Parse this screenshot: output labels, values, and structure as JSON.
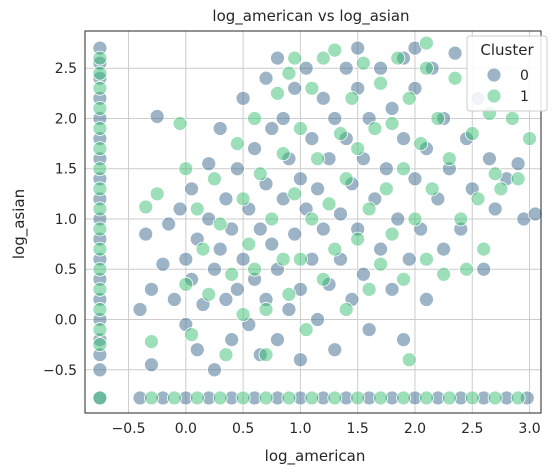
{
  "chart_data": {
    "type": "scatter",
    "title": "log_american vs log_asian",
    "xlabel": "log_american",
    "ylabel": "log_asian",
    "xlim": [
      -0.88,
      3.1
    ],
    "ylim": [
      -0.93,
      2.87
    ],
    "xticks": [
      "−0.5",
      "0.0",
      "0.5",
      "1.0",
      "1.5",
      "2.0",
      "2.5",
      "3.0"
    ],
    "xtick_values": [
      -0.5,
      0.0,
      0.5,
      1.0,
      1.5,
      2.0,
      2.5,
      3.0
    ],
    "yticks": [
      "−0.5",
      "0.0",
      "0.5",
      "1.0",
      "1.5",
      "2.0",
      "2.5"
    ],
    "ytick_values": [
      -0.5,
      0.0,
      0.5,
      1.0,
      1.5,
      2.0,
      2.5
    ],
    "grid": true,
    "legend": {
      "title": "Cluster",
      "placement": "top-right",
      "entries": [
        {
          "label": "0",
          "color": "#3b6a8f"
        },
        {
          "label": "1",
          "color": "#3cbf74"
        }
      ]
    },
    "point_alpha": 0.5,
    "series": [
      {
        "name": "0",
        "color": "#3b6a8f",
        "points": [
          [
            -0.75,
            2.7
          ],
          [
            -0.75,
            2.55
          ],
          [
            -0.75,
            2.4
          ],
          [
            -0.75,
            2.2
          ],
          [
            -0.75,
            2.0
          ],
          [
            -0.75,
            1.8
          ],
          [
            -0.75,
            1.6
          ],
          [
            -0.75,
            1.4
          ],
          [
            -0.75,
            1.2
          ],
          [
            -0.75,
            1.0
          ],
          [
            -0.75,
            0.8
          ],
          [
            -0.75,
            0.6
          ],
          [
            -0.75,
            0.4
          ],
          [
            -0.75,
            0.2
          ],
          [
            -0.75,
            0.0
          ],
          [
            -0.75,
            -0.2
          ],
          [
            -0.75,
            -0.35
          ],
          [
            -0.75,
            -0.5
          ],
          [
            -0.75,
            -0.78
          ],
          [
            -0.4,
            -0.78
          ],
          [
            -0.2,
            -0.78
          ],
          [
            0.0,
            -0.78
          ],
          [
            0.2,
            -0.78
          ],
          [
            0.4,
            -0.78
          ],
          [
            0.6,
            -0.78
          ],
          [
            0.8,
            -0.78
          ],
          [
            1.0,
            -0.78
          ],
          [
            1.2,
            -0.78
          ],
          [
            1.4,
            -0.78
          ],
          [
            1.6,
            -0.78
          ],
          [
            1.8,
            -0.78
          ],
          [
            2.0,
            -0.78
          ],
          [
            2.2,
            -0.78
          ],
          [
            2.4,
            -0.78
          ],
          [
            2.6,
            -0.78
          ],
          [
            2.8,
            -0.78
          ],
          [
            2.98,
            -0.78
          ],
          [
            -0.4,
            0.1
          ],
          [
            -0.35,
            0.85
          ],
          [
            -0.3,
            -0.45
          ],
          [
            -0.3,
            0.3
          ],
          [
            -0.25,
            2.02
          ],
          [
            -0.2,
            0.55
          ],
          [
            -0.15,
            0.95
          ],
          [
            -0.1,
            0.2
          ],
          [
            -0.05,
            1.1
          ],
          [
            0.0,
            -0.05
          ],
          [
            0.0,
            0.6
          ],
          [
            0.05,
            1.3
          ],
          [
            0.05,
            0.4
          ],
          [
            0.1,
            0.8
          ],
          [
            0.1,
            -0.3
          ],
          [
            0.15,
            0.15
          ],
          [
            0.2,
            1.55
          ],
          [
            0.2,
            1.0
          ],
          [
            0.25,
            0.5
          ],
          [
            0.25,
            -0.5
          ],
          [
            0.3,
            1.9
          ],
          [
            0.3,
            0.7
          ],
          [
            0.35,
            0.2
          ],
          [
            0.35,
            1.2
          ],
          [
            0.4,
            0.9
          ],
          [
            0.4,
            -0.2
          ],
          [
            0.45,
            1.5
          ],
          [
            0.45,
            0.3
          ],
          [
            0.5,
            2.2
          ],
          [
            0.5,
            0.6
          ],
          [
            0.55,
            1.1
          ],
          [
            0.55,
            -0.05
          ],
          [
            0.6,
            1.7
          ],
          [
            0.6,
            0.4
          ],
          [
            0.65,
            0.9
          ],
          [
            0.65,
            -0.35
          ],
          [
            0.7,
            2.4
          ],
          [
            0.7,
            1.35
          ],
          [
            0.7,
            0.2
          ],
          [
            0.75,
            0.75
          ],
          [
            0.75,
            1.9
          ],
          [
            0.8,
            2.6
          ],
          [
            0.8,
            0.5
          ],
          [
            0.8,
            -0.2
          ],
          [
            0.85,
            1.2
          ],
          [
            0.85,
            2.0
          ],
          [
            0.9,
            1.6
          ],
          [
            0.9,
            0.1
          ],
          [
            0.95,
            0.85
          ],
          [
            0.95,
            2.3
          ],
          [
            1.0,
            1.4
          ],
          [
            1.0,
            0.3
          ],
          [
            1.0,
            -0.4
          ],
          [
            1.05,
            1.1
          ],
          [
            1.05,
            2.5
          ],
          [
            1.1,
            0.6
          ],
          [
            1.1,
            1.8
          ],
          [
            1.15,
            0.0
          ],
          [
            1.15,
            1.3
          ],
          [
            1.2,
            2.2
          ],
          [
            1.2,
            0.9
          ],
          [
            1.25,
            1.6
          ],
          [
            1.25,
            0.35
          ],
          [
            1.3,
            2.0
          ],
          [
            1.3,
            -0.3
          ],
          [
            1.35,
            1.05
          ],
          [
            1.35,
            0.6
          ],
          [
            1.4,
            1.8
          ],
          [
            1.4,
            2.5
          ],
          [
            1.45,
            0.2
          ],
          [
            1.45,
            1.35
          ],
          [
            1.5,
            0.9
          ],
          [
            1.5,
            2.3
          ],
          [
            1.55,
            1.6
          ],
          [
            1.55,
            0.45
          ],
          [
            1.6,
            2.0
          ],
          [
            1.6,
            -0.1
          ],
          [
            1.65,
            1.2
          ],
          [
            1.7,
            0.7
          ],
          [
            1.7,
            2.5
          ],
          [
            1.75,
            1.5
          ],
          [
            1.8,
            0.3
          ],
          [
            1.8,
            2.1
          ],
          [
            1.85,
            1.0
          ],
          [
            1.9,
            1.8
          ],
          [
            1.9,
            2.6
          ],
          [
            1.95,
            0.6
          ],
          [
            2.0,
            1.4
          ],
          [
            2.0,
            2.3
          ],
          [
            2.05,
            0.9
          ],
          [
            2.1,
            1.7
          ],
          [
            2.1,
            0.2
          ],
          [
            2.15,
            2.5
          ],
          [
            2.2,
            1.2
          ],
          [
            2.25,
            0.7
          ],
          [
            2.25,
            2.0
          ],
          [
            2.3,
            1.5
          ],
          [
            2.35,
            2.65
          ],
          [
            2.4,
            0.9
          ],
          [
            2.45,
            1.8
          ],
          [
            2.5,
            1.3
          ],
          [
            2.55,
            2.2
          ],
          [
            2.6,
            0.5
          ],
          [
            2.65,
            1.6
          ],
          [
            2.7,
            1.1
          ],
          [
            2.8,
            1.4
          ],
          [
            2.9,
            1.55
          ],
          [
            2.95,
            1.0
          ],
          [
            3.05,
            1.05
          ],
          [
            2.0,
            2.7
          ],
          [
            1.5,
            2.7
          ],
          [
            1.9,
            -0.2
          ]
        ]
      },
      {
        "name": "1",
        "color": "#3cbf74",
        "points": [
          [
            -0.75,
            2.6
          ],
          [
            -0.75,
            2.45
          ],
          [
            -0.75,
            2.3
          ],
          [
            -0.75,
            2.1
          ],
          [
            -0.75,
            1.9
          ],
          [
            -0.75,
            1.7
          ],
          [
            -0.75,
            1.5
          ],
          [
            -0.75,
            1.3
          ],
          [
            -0.75,
            1.1
          ],
          [
            -0.75,
            0.9
          ],
          [
            -0.75,
            0.7
          ],
          [
            -0.75,
            0.5
          ],
          [
            -0.75,
            0.3
          ],
          [
            -0.75,
            0.1
          ],
          [
            -0.75,
            -0.1
          ],
          [
            -0.75,
            -0.25
          ],
          [
            -0.75,
            -0.78
          ],
          [
            -0.3,
            -0.78
          ],
          [
            -0.1,
            -0.78
          ],
          [
            0.1,
            -0.78
          ],
          [
            0.3,
            -0.78
          ],
          [
            0.5,
            -0.78
          ],
          [
            0.7,
            -0.78
          ],
          [
            0.9,
            -0.78
          ],
          [
            1.1,
            -0.78
          ],
          [
            1.3,
            -0.78
          ],
          [
            1.5,
            -0.78
          ],
          [
            1.7,
            -0.78
          ],
          [
            1.9,
            -0.78
          ],
          [
            2.1,
            -0.78
          ],
          [
            2.3,
            -0.78
          ],
          [
            2.5,
            -0.78
          ],
          [
            2.7,
            -0.78
          ],
          [
            2.9,
            -0.78
          ],
          [
            -0.35,
            1.12
          ],
          [
            -0.3,
            -0.22
          ],
          [
            -0.25,
            1.25
          ],
          [
            -0.05,
            1.95
          ],
          [
            0.0,
            1.5
          ],
          [
            0.0,
            0.35
          ],
          [
            0.05,
            -0.15
          ],
          [
            0.1,
            1.1
          ],
          [
            0.15,
            0.7
          ],
          [
            0.2,
            0.25
          ],
          [
            0.25,
            1.4
          ],
          [
            0.3,
            0.95
          ],
          [
            0.35,
            -0.35
          ],
          [
            0.4,
            0.45
          ],
          [
            0.45,
            1.75
          ],
          [
            0.5,
            1.2
          ],
          [
            0.5,
            0.05
          ],
          [
            0.55,
            0.75
          ],
          [
            0.6,
            2.0
          ],
          [
            0.6,
            0.5
          ],
          [
            0.65,
            1.45
          ],
          [
            0.7,
            0.1
          ],
          [
            0.7,
            -0.35
          ],
          [
            0.75,
            1.0
          ],
          [
            0.8,
            2.25
          ],
          [
            0.85,
            0.6
          ],
          [
            0.85,
            1.65
          ],
          [
            0.9,
            2.45
          ],
          [
            0.9,
            0.25
          ],
          [
            0.95,
            1.25
          ],
          [
            1.0,
            1.9
          ],
          [
            1.0,
            0.6
          ],
          [
            1.05,
            -0.1
          ],
          [
            1.1,
            2.3
          ],
          [
            1.1,
            1.0
          ],
          [
            1.15,
            1.6
          ],
          [
            1.2,
            0.4
          ],
          [
            1.2,
            2.6
          ],
          [
            1.25,
            1.15
          ],
          [
            1.3,
            2.68
          ],
          [
            1.3,
            0.7
          ],
          [
            1.35,
            1.85
          ],
          [
            1.4,
            0.1
          ],
          [
            1.4,
            1.4
          ],
          [
            1.45,
            2.2
          ],
          [
            1.5,
            0.8
          ],
          [
            1.5,
            1.7
          ],
          [
            1.55,
            2.55
          ],
          [
            1.6,
            1.1
          ],
          [
            1.6,
            0.3
          ],
          [
            1.65,
            1.9
          ],
          [
            1.7,
            0.55
          ],
          [
            1.7,
            2.35
          ],
          [
            1.75,
            1.3
          ],
          [
            1.8,
            0.85
          ],
          [
            1.8,
            1.95
          ],
          [
            1.85,
            2.6
          ],
          [
            1.9,
            0.4
          ],
          [
            1.9,
            1.5
          ],
          [
            1.95,
            2.2
          ],
          [
            2.0,
            1.0
          ],
          [
            2.05,
            1.75
          ],
          [
            2.1,
            0.6
          ],
          [
            2.1,
            2.5
          ],
          [
            2.15,
            1.3
          ],
          [
            2.2,
            2.0
          ],
          [
            2.25,
            0.45
          ],
          [
            2.3,
            1.6
          ],
          [
            2.35,
            2.4
          ],
          [
            2.4,
            1.0
          ],
          [
            2.45,
            0.5
          ],
          [
            2.5,
            1.85
          ],
          [
            2.55,
            1.2
          ],
          [
            2.6,
            0.7
          ],
          [
            2.65,
            2.05
          ],
          [
            2.7,
            1.45
          ],
          [
            2.75,
            1.3
          ],
          [
            2.85,
            2.0
          ],
          [
            2.9,
            1.4
          ],
          [
            3.0,
            1.8
          ],
          [
            1.95,
            -0.4
          ],
          [
            2.1,
            2.75
          ],
          [
            0.95,
            2.6
          ]
        ]
      }
    ]
  }
}
